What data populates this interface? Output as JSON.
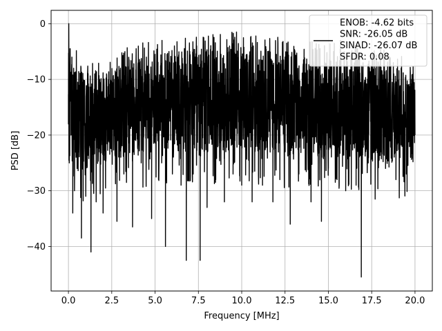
{
  "chart_data": {
    "type": "line",
    "title": "",
    "xlabel": "Frequency [MHz]",
    "ylabel": "PSD [dB]",
    "xlim": [
      -1.0,
      21.0
    ],
    "ylim": [
      -48.0,
      2.4
    ],
    "xticks": [
      0.0,
      2.5,
      5.0,
      7.5,
      10.0,
      12.5,
      15.0,
      17.5,
      20.0
    ],
    "xtick_labels": [
      "0.0",
      "2.5",
      "5.0",
      "7.5",
      "10.0",
      "12.5",
      "15.0",
      "17.5",
      "20.0"
    ],
    "yticks": [
      0,
      -10,
      -20,
      -30,
      -40
    ],
    "ytick_labels": [
      "0",
      "−10",
      "−20",
      "−30",
      "−40"
    ],
    "grid": true,
    "legend_position": "top-right",
    "legend": [
      "ENOB: -4.62 bits",
      "SNR: -26.05 dB",
      "SINAD: -26.07 dB",
      "SFDR: 0.08"
    ],
    "series": [
      {
        "color": "#000000",
        "points_sampled": [
          [
            0.0,
            -18.0
          ],
          [
            0.02,
            0.0
          ],
          [
            0.05,
            -25.0
          ],
          [
            0.1,
            -4.5
          ],
          [
            0.15,
            -20.0
          ],
          [
            0.2,
            -6.0
          ],
          [
            0.25,
            -34.0
          ],
          [
            0.3,
            -8.0
          ],
          [
            0.35,
            -30.0
          ],
          [
            0.4,
            -11.0
          ],
          [
            0.5,
            -26.0
          ],
          [
            0.6,
            -12.0
          ],
          [
            0.75,
            -38.5
          ],
          [
            0.85,
            -10.0
          ],
          [
            1.0,
            -31.0
          ],
          [
            1.1,
            -9.0
          ],
          [
            1.3,
            -41.0
          ],
          [
            1.4,
            -12.0
          ],
          [
            1.6,
            -32.0
          ],
          [
            1.8,
            -10.0
          ],
          [
            2.0,
            -34.0
          ],
          [
            2.2,
            -9.0
          ],
          [
            2.5,
            -23.0
          ],
          [
            2.7,
            -8.5
          ],
          [
            2.8,
            -35.5
          ],
          [
            3.0,
            -8.0
          ],
          [
            3.2,
            -27.0
          ],
          [
            3.5,
            -6.5
          ],
          [
            3.7,
            -36.5
          ],
          [
            3.9,
            -7.0
          ],
          [
            4.2,
            -25.0
          ],
          [
            4.5,
            -6.0
          ],
          [
            4.8,
            -35.0
          ],
          [
            5.0,
            -5.5
          ],
          [
            5.2,
            -28.0
          ],
          [
            5.4,
            -3.0
          ],
          [
            5.6,
            -40.0
          ],
          [
            5.8,
            -5.0
          ],
          [
            6.0,
            -27.0
          ],
          [
            6.3,
            -6.0
          ],
          [
            6.5,
            -29.0
          ],
          [
            6.8,
            -42.5
          ],
          [
            7.0,
            -5.0
          ],
          [
            7.2,
            -27.0
          ],
          [
            7.4,
            -4.0
          ],
          [
            7.6,
            -42.5
          ],
          [
            7.8,
            -6.0
          ],
          [
            8.0,
            -33.0
          ],
          [
            8.3,
            -5.0
          ],
          [
            8.5,
            -28.0
          ],
          [
            8.8,
            -5.5
          ],
          [
            9.0,
            -32.0
          ],
          [
            9.3,
            -4.0
          ],
          [
            9.5,
            -27.0
          ],
          [
            9.7,
            -1.5
          ],
          [
            10.0,
            -29.0
          ],
          [
            10.3,
            -5.5
          ],
          [
            10.6,
            -32.0
          ],
          [
            10.9,
            -6.0
          ],
          [
            11.2,
            -29.0
          ],
          [
            11.5,
            -5.0
          ],
          [
            11.8,
            -32.0
          ],
          [
            12.0,
            -5.5
          ],
          [
            12.2,
            -28.0
          ],
          [
            12.5,
            -6.0
          ],
          [
            12.8,
            -36.0
          ],
          [
            13.0,
            -6.5
          ],
          [
            13.3,
            -27.0
          ],
          [
            13.6,
            -6.0
          ],
          [
            14.0,
            -32.0
          ],
          [
            14.3,
            -7.0
          ],
          [
            14.6,
            -35.5
          ],
          [
            14.8,
            -7.0
          ],
          [
            15.0,
            -26.0
          ],
          [
            15.3,
            -5.0
          ],
          [
            15.5,
            -28.0
          ],
          [
            15.7,
            -3.0
          ],
          [
            16.0,
            -30.0
          ],
          [
            16.3,
            -5.5
          ],
          [
            16.6,
            -29.0
          ],
          [
            16.9,
            -45.5
          ],
          [
            17.0,
            -7.0
          ],
          [
            17.3,
            -25.0
          ],
          [
            17.5,
            -7.5
          ],
          [
            17.7,
            -31.5
          ],
          [
            18.0,
            -8.0
          ],
          [
            18.3,
            -26.0
          ],
          [
            18.6,
            -7.5
          ],
          [
            18.9,
            -28.0
          ],
          [
            19.2,
            -8.0
          ],
          [
            19.5,
            -27.0
          ],
          [
            19.8,
            -10.0
          ],
          [
            20.0,
            -20.0
          ]
        ],
        "envelope_upper_sampled": [
          [
            0.0,
            -5.0
          ],
          [
            1.0,
            -10.5
          ],
          [
            2.0,
            -9.0
          ],
          [
            3.0,
            -7.5
          ],
          [
            4.0,
            -6.5
          ],
          [
            5.0,
            -5.5
          ],
          [
            6.0,
            -5.0
          ],
          [
            7.0,
            -4.5
          ],
          [
            8.0,
            -4.5
          ],
          [
            9.0,
            -4.5
          ],
          [
            10.0,
            -4.5
          ],
          [
            11.0,
            -4.5
          ],
          [
            12.0,
            -5.0
          ],
          [
            13.0,
            -5.5
          ],
          [
            14.0,
            -6.0
          ],
          [
            15.0,
            -6.5
          ],
          [
            16.0,
            -6.5
          ],
          [
            17.0,
            -7.0
          ],
          [
            18.0,
            -7.5
          ],
          [
            19.0,
            -8.5
          ],
          [
            20.0,
            -10.0
          ]
        ],
        "envelope_lower_sampled": [
          [
            0.0,
            -24.0
          ],
          [
            1.0,
            -27.0
          ],
          [
            2.0,
            -25.0
          ],
          [
            3.0,
            -24.0
          ],
          [
            4.0,
            -23.5
          ],
          [
            5.0,
            -23.0
          ],
          [
            6.0,
            -23.0
          ],
          [
            7.0,
            -23.0
          ],
          [
            8.0,
            -23.0
          ],
          [
            9.0,
            -23.0
          ],
          [
            10.0,
            -23.0
          ],
          [
            11.0,
            -23.0
          ],
          [
            12.0,
            -23.5
          ],
          [
            13.0,
            -23.5
          ],
          [
            14.0,
            -24.0
          ],
          [
            15.0,
            -24.0
          ],
          [
            16.0,
            -24.0
          ],
          [
            17.0,
            -24.5
          ],
          [
            18.0,
            -25.0
          ],
          [
            19.0,
            -25.5
          ],
          [
            20.0,
            -25.0
          ]
        ]
      }
    ]
  }
}
